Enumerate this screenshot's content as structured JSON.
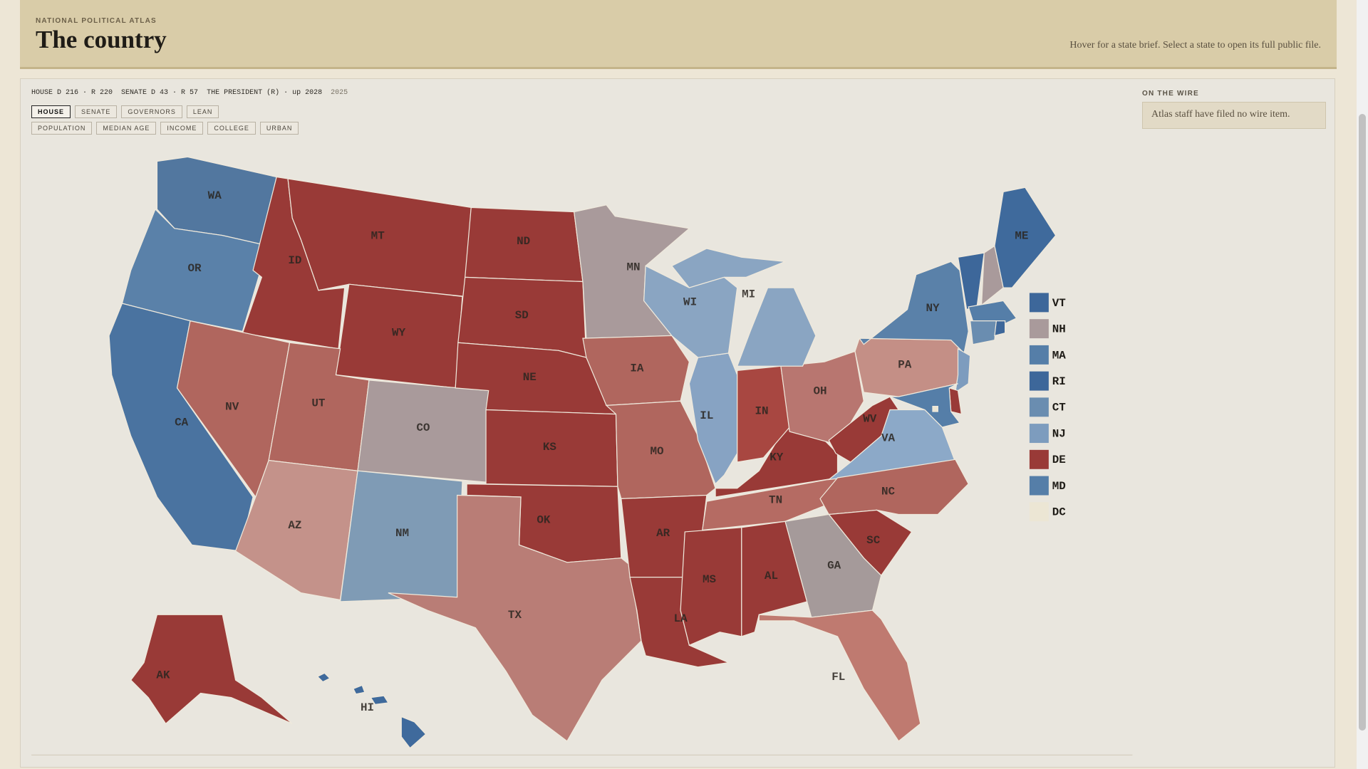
{
  "header": {
    "eyebrow": "NATIONAL POLITICAL ATLAS",
    "title": "The country",
    "hint": "Hover for a state brief. Select a state to open its full public file."
  },
  "status": {
    "house": "HOUSE D 216 · R 220",
    "senate": "SENATE D 43 · R 57",
    "president": "THE PRESIDENT (R) · up 2028",
    "year": "2025"
  },
  "tabs": {
    "primary": [
      {
        "label": "HOUSE",
        "active": true
      },
      {
        "label": "SENATE",
        "active": false
      },
      {
        "label": "GOVERNORS",
        "active": false
      },
      {
        "label": "LEAN",
        "active": false
      }
    ],
    "secondary": [
      {
        "label": "POPULATION",
        "active": false
      },
      {
        "label": "MEDIAN AGE",
        "active": false
      },
      {
        "label": "INCOME",
        "active": false
      },
      {
        "label": "COLLEGE",
        "active": false
      },
      {
        "label": "URBAN",
        "active": false
      }
    ]
  },
  "wire": {
    "heading": "ON THE WIRE",
    "text": "Atlas staff have filed no wire item."
  },
  "map": {
    "states": [
      {
        "abbr": "WA",
        "color": "#52779f"
      },
      {
        "abbr": "OR",
        "color": "#5a81a9"
      },
      {
        "abbr": "CA",
        "color": "#4a73a0"
      },
      {
        "abbr": "ID",
        "color": "#993a37"
      },
      {
        "abbr": "MT",
        "color": "#993a37"
      },
      {
        "abbr": "WY",
        "color": "#993a37"
      },
      {
        "abbr": "NV",
        "color": "#b0665e"
      },
      {
        "abbr": "UT",
        "color": "#b0665e"
      },
      {
        "abbr": "CO",
        "color": "#a99a9b"
      },
      {
        "abbr": "AZ",
        "color": "#c4928a"
      },
      {
        "abbr": "NM",
        "color": "#7f9bb5"
      },
      {
        "abbr": "ND",
        "color": "#993a37"
      },
      {
        "abbr": "SD",
        "color": "#993a37"
      },
      {
        "abbr": "NE",
        "color": "#993a37"
      },
      {
        "abbr": "KS",
        "color": "#993a37"
      },
      {
        "abbr": "OK",
        "color": "#993a37"
      },
      {
        "abbr": "TX",
        "color": "#b97d76"
      },
      {
        "abbr": "MN",
        "color": "#a99a9b"
      },
      {
        "abbr": "IA",
        "color": "#b0665e"
      },
      {
        "abbr": "MO",
        "color": "#b0665e"
      },
      {
        "abbr": "AR",
        "color": "#993a37"
      },
      {
        "abbr": "LA",
        "color": "#993a37"
      },
      {
        "abbr": "MS",
        "color": "#993a37"
      },
      {
        "abbr": "AL",
        "color": "#993a37"
      },
      {
        "abbr": "TN",
        "color": "#b56b63"
      },
      {
        "abbr": "KY",
        "color": "#993a37"
      },
      {
        "abbr": "IL",
        "color": "#87a3c3"
      },
      {
        "abbr": "IN",
        "color": "#a84741"
      },
      {
        "abbr": "OH",
        "color": "#b87670"
      },
      {
        "abbr": "MI",
        "color": "#8aa5c2"
      },
      {
        "abbr": "WI",
        "color": "#8aa5c2"
      },
      {
        "abbr": "WV",
        "color": "#993a37"
      },
      {
        "abbr": "VA",
        "color": "#8ca9c8"
      },
      {
        "abbr": "NC",
        "color": "#b0665e"
      },
      {
        "abbr": "SC",
        "color": "#993a37"
      },
      {
        "abbr": "GA",
        "color": "#a59a9a"
      },
      {
        "abbr": "FL",
        "color": "#bf7a70"
      },
      {
        "abbr": "PA",
        "color": "#c48f86"
      },
      {
        "abbr": "NY",
        "color": "#5a81a9"
      },
      {
        "abbr": "NJ",
        "color": "#7d9cbe"
      },
      {
        "abbr": "DE",
        "color": "#993a37"
      },
      {
        "abbr": "MD",
        "color": "#557ea8"
      },
      {
        "abbr": "VT",
        "color": "#3d679a"
      },
      {
        "abbr": "NH",
        "color": "#a99a9b"
      },
      {
        "abbr": "ME",
        "color": "#3f6a9c"
      },
      {
        "abbr": "MA",
        "color": "#557ea8"
      },
      {
        "abbr": "CT",
        "color": "#6a8db0"
      },
      {
        "abbr": "RI",
        "color": "#3d679a"
      },
      {
        "abbr": "DC",
        "color": "#ece6d4"
      },
      {
        "abbr": "AK",
        "color": "#993a37"
      },
      {
        "abbr": "HI",
        "color": "#3f6a9c"
      }
    ],
    "legend": [
      {
        "label": "VT",
        "color": "#3d679a"
      },
      {
        "label": "NH",
        "color": "#a99a9b"
      },
      {
        "label": "MA",
        "color": "#557ea8"
      },
      {
        "label": "RI",
        "color": "#3d679a"
      },
      {
        "label": "CT",
        "color": "#6a8db0"
      },
      {
        "label": "NJ",
        "color": "#7d9cbe"
      },
      {
        "label": "DE",
        "color": "#993a37"
      },
      {
        "label": "MD",
        "color": "#557ea8"
      },
      {
        "label": "DC",
        "color": "#ece6d4"
      }
    ]
  }
}
